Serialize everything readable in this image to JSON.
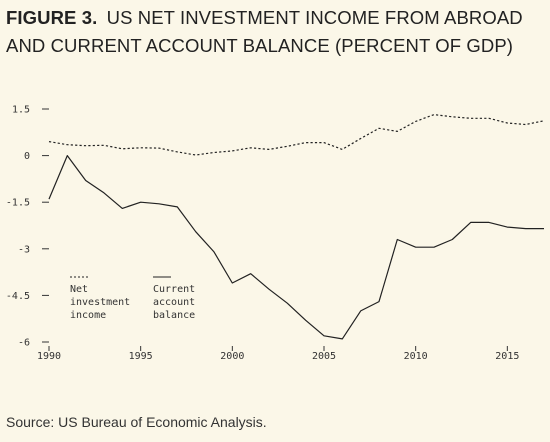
{
  "figure": {
    "label": "FIGURE 3.",
    "title": "US NET INVESTMENT INCOME FROM ABROAD AND CURRENT ACCOUNT BALANCE (PERCENT OF GDP)"
  },
  "source": "Source: US Bureau of Economic Analysis.",
  "chart_data": {
    "type": "line",
    "title": "FIGURE 3. US NET INVESTMENT INCOME FROM ABROAD AND CURRENT ACCOUNT BALANCE (PERCENT OF GDP)",
    "xlabel": "",
    "ylabel": "",
    "xlim": [
      1990,
      2017
    ],
    "ylim": [
      -6,
      1.5
    ],
    "x_ticks": [
      1990,
      1995,
      2000,
      2005,
      2010,
      2015
    ],
    "y_ticks": [
      1.5,
      0,
      -1.5,
      -3,
      -4.5,
      -6
    ],
    "y_tick_labels": [
      "1.5",
      "0",
      "-1.5",
      "-3",
      "-4.5",
      "-6"
    ],
    "grid": false,
    "legend_placement": "bottom-left",
    "x": [
      1990,
      1991,
      1992,
      1993,
      1994,
      1995,
      1996,
      1997,
      1998,
      1999,
      2000,
      2001,
      2002,
      2003,
      2004,
      2005,
      2006,
      2007,
      2008,
      2009,
      2010,
      2011,
      2012,
      2013,
      2014,
      2015,
      2016,
      2017
    ],
    "series": [
      {
        "name": "Net investment income",
        "legend_lines": [
          "Net",
          "investment",
          "income"
        ],
        "style": "dashed",
        "color": "#222222",
        "values": [
          0.45,
          0.35,
          0.32,
          0.33,
          0.22,
          0.25,
          0.24,
          0.12,
          0.02,
          0.1,
          0.15,
          0.25,
          0.2,
          0.3,
          0.42,
          0.42,
          0.2,
          0.55,
          0.88,
          0.78,
          1.1,
          1.32,
          1.25,
          1.2,
          1.2,
          1.05,
          1.0,
          1.12
        ]
      },
      {
        "name": "Current account balance",
        "legend_lines": [
          "Current",
          "account",
          "balance"
        ],
        "style": "solid",
        "color": "#222222",
        "values": [
          -1.4,
          0.0,
          -0.8,
          -1.2,
          -1.7,
          -1.5,
          -1.55,
          -1.65,
          -2.45,
          -3.1,
          -4.1,
          -3.8,
          -4.3,
          -4.75,
          -5.3,
          -5.8,
          -5.9,
          -5.0,
          -4.7,
          -2.7,
          -2.95,
          -2.95,
          -2.7,
          -2.15,
          -2.15,
          -2.3,
          -2.35,
          -2.35
        ]
      }
    ]
  }
}
